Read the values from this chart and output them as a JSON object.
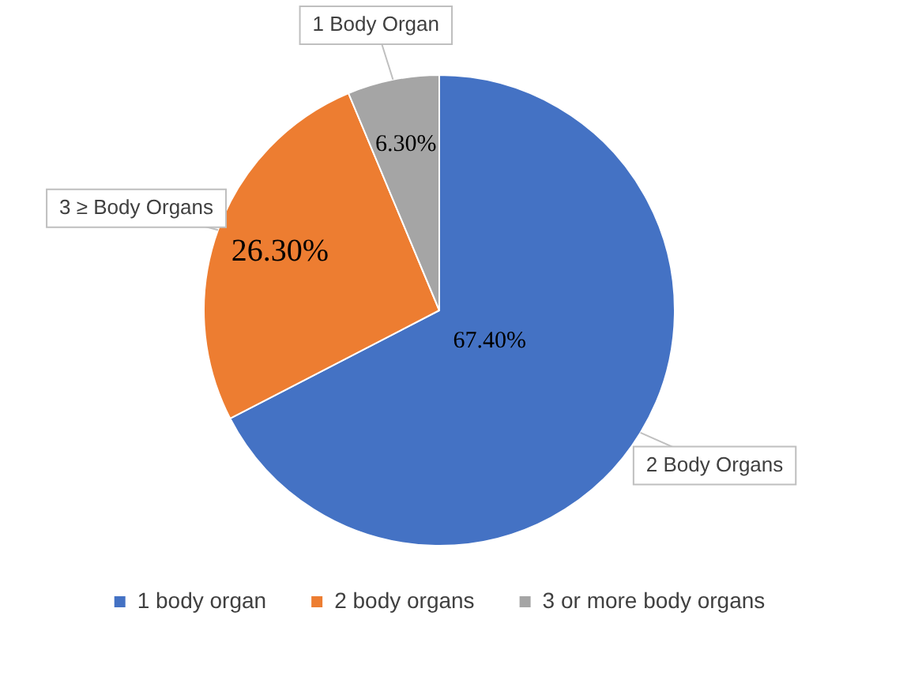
{
  "chart_data": {
    "type": "pie",
    "categories": [
      "1 body organ",
      "2 body organs",
      "3 or more body organs"
    ],
    "values": [
      67.4,
      26.3,
      6.3
    ],
    "colors": [
      "#4472c4",
      "#ed7d31",
      "#a5a5a5"
    ],
    "value_labels": [
      "67.40%",
      "26.30%",
      "6.30%"
    ],
    "annotations": [
      "2 Body Organs",
      "3 ≥ Body Organs",
      "1 Body Organ"
    ],
    "legend": "bottom"
  }
}
